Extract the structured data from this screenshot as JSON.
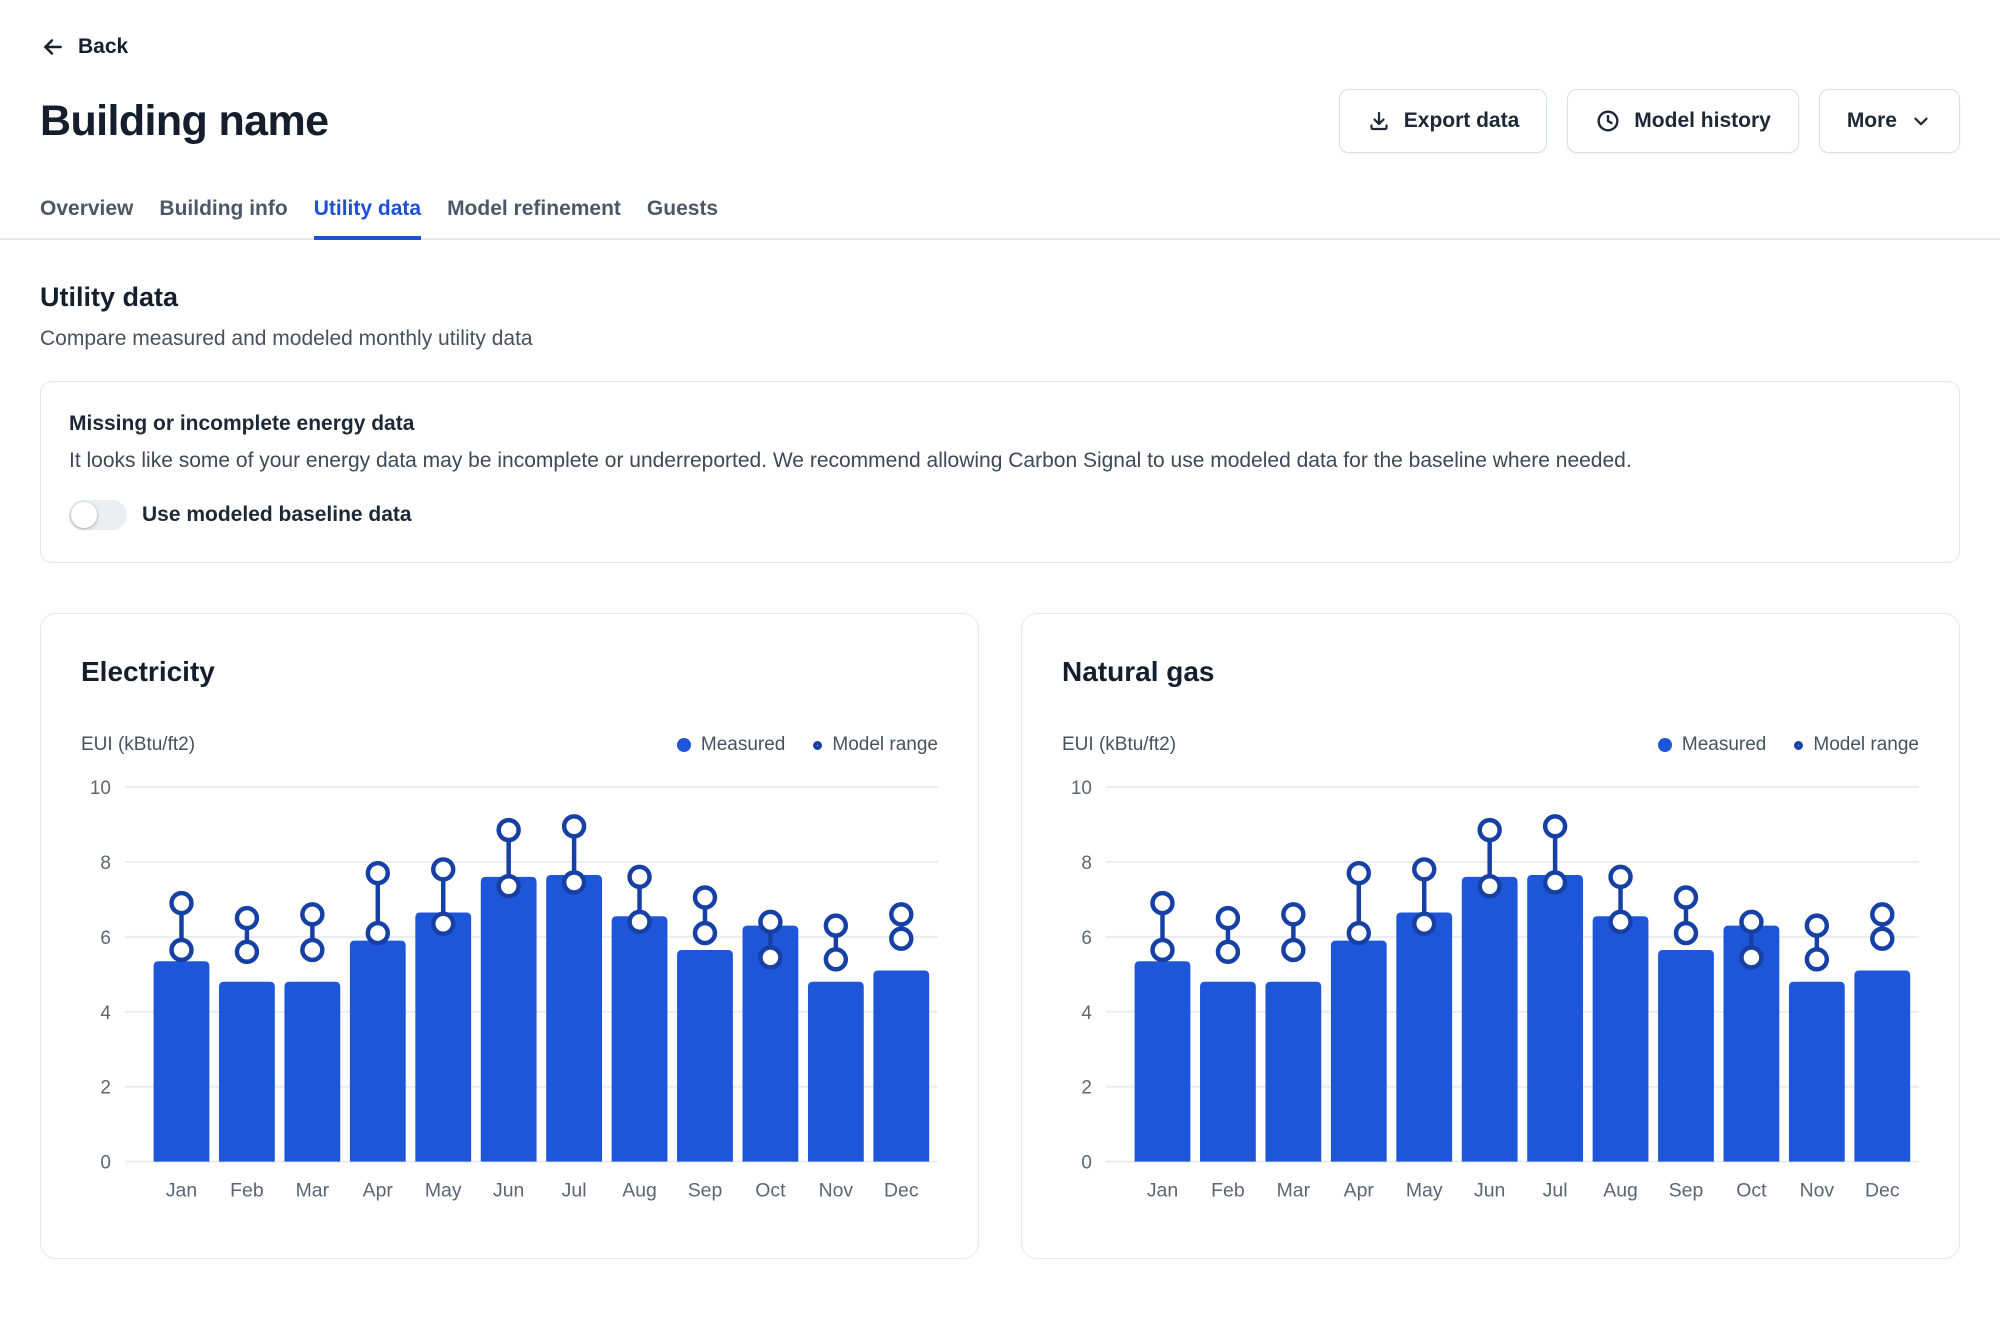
{
  "header": {
    "back_label": "Back",
    "title": "Building name",
    "buttons": {
      "export": "Export data",
      "model_history": "Model history",
      "more": "More"
    }
  },
  "tabs": [
    {
      "label": "Overview",
      "active": false
    },
    {
      "label": "Building info",
      "active": false
    },
    {
      "label": "Utility data",
      "active": true
    },
    {
      "label": "Model refinement",
      "active": false
    },
    {
      "label": "Guests",
      "active": false
    }
  ],
  "section": {
    "title": "Utility data",
    "subtitle": "Compare measured and modeled monthly utility data"
  },
  "alert": {
    "title": "Missing or incomplete energy data",
    "body": "It looks like some of your energy data may be incomplete or underreported. We recommend allowing Carbon Signal to use modeled data for the baseline where needed.",
    "toggle_label": "Use modeled baseline data",
    "toggle_on": false
  },
  "colors": {
    "accent": "#1d4fd8",
    "bar": "#1e56d9",
    "range": "#1740a5",
    "grid": "#e9edf2",
    "axis_text": "#5c6572"
  },
  "charts": [
    {
      "title": "Electricity",
      "chart_data": {
        "type": "bar",
        "categories": [
          "Jan",
          "Feb",
          "Mar",
          "Apr",
          "May",
          "Jun",
          "Jul",
          "Aug",
          "Sep",
          "Oct",
          "Nov",
          "Dec"
        ],
        "series": [
          {
            "name": "Measured",
            "type": "bar",
            "values": [
              5.35,
              4.8,
              4.8,
              5.9,
              6.65,
              7.6,
              7.65,
              6.55,
              5.65,
              6.3,
              4.8,
              5.1
            ]
          },
          {
            "name": "Model range",
            "type": "range",
            "low": [
              5.65,
              5.6,
              5.65,
              6.1,
              6.35,
              7.35,
              7.45,
              6.4,
              6.1,
              5.45,
              5.4,
              5.95
            ],
            "high": [
              6.9,
              6.5,
              6.6,
              7.7,
              7.8,
              8.85,
              8.95,
              7.6,
              7.05,
              6.4,
              6.3,
              6.6
            ]
          }
        ],
        "title": "Electricity",
        "xlabel": "",
        "ylabel": "EUI (kBtu/ft2)",
        "ylim": [
          0,
          10
        ],
        "y_ticks": [
          0,
          2,
          4,
          6,
          8,
          10
        ],
        "grid": true,
        "legend_position": "top-right"
      }
    },
    {
      "title": "Natural gas",
      "chart_data": {
        "type": "bar",
        "categories": [
          "Jan",
          "Feb",
          "Mar",
          "Apr",
          "May",
          "Jun",
          "Jul",
          "Aug",
          "Sep",
          "Oct",
          "Nov",
          "Dec"
        ],
        "series": [
          {
            "name": "Measured",
            "type": "bar",
            "values": [
              5.35,
              4.8,
              4.8,
              5.9,
              6.65,
              7.6,
              7.65,
              6.55,
              5.65,
              6.3,
              4.8,
              5.1
            ]
          },
          {
            "name": "Model range",
            "type": "range",
            "low": [
              5.65,
              5.6,
              5.65,
              6.1,
              6.35,
              7.35,
              7.45,
              6.4,
              6.1,
              5.45,
              5.4,
              5.95
            ],
            "high": [
              6.9,
              6.5,
              6.6,
              7.7,
              7.8,
              8.85,
              8.95,
              7.6,
              7.05,
              6.4,
              6.3,
              6.6
            ]
          }
        ],
        "title": "Natural gas",
        "xlabel": "",
        "ylabel": "EUI (kBtu/ft2)",
        "ylim": [
          0,
          10
        ],
        "y_ticks": [
          0,
          2,
          4,
          6,
          8,
          10
        ],
        "grid": true,
        "legend_position": "top-right"
      }
    }
  ]
}
